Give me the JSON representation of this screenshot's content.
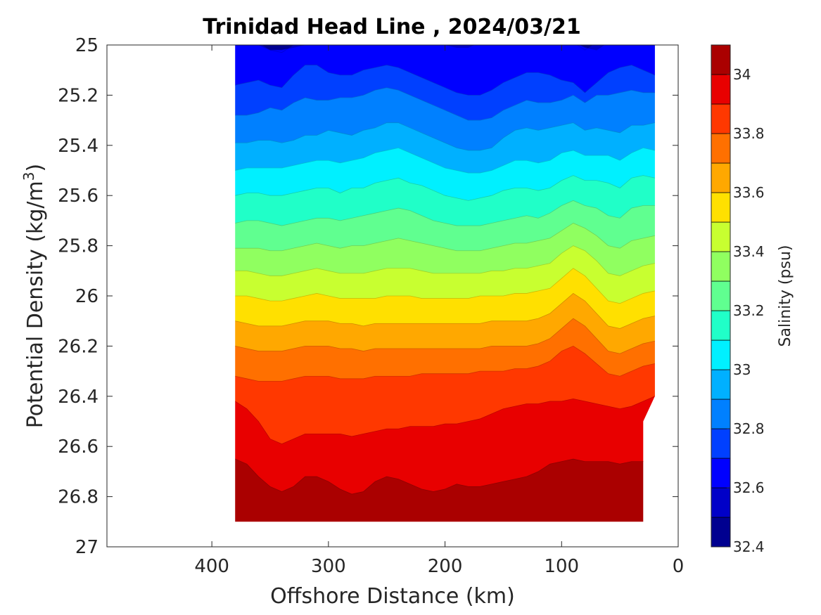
{
  "chart_data": {
    "type": "contour",
    "title": "Trinidad Head Line , 2024/03/21",
    "xlabel": "Offshore Distance (km)",
    "ylabel": "Potential Density (kg/m",
    "ylabel_superscript": "3",
    "ylabel_suffix": ")",
    "x_reversed": true,
    "y_reversed": true,
    "xlim": [
      0,
      490
    ],
    "ylim": [
      25,
      27
    ],
    "x_ticks": [
      400,
      300,
      200,
      100,
      0
    ],
    "x_tick_labels": [
      "400",
      "300",
      "200",
      "100",
      "0"
    ],
    "y_ticks": [
      25,
      25.2,
      25.4,
      25.6,
      25.8,
      26,
      26.2,
      26.4,
      26.6,
      26.8,
      27
    ],
    "y_tick_labels": [
      "25",
      "25.2",
      "25.4",
      "25.6",
      "25.8",
      "26",
      "26.2",
      "26.4",
      "26.6",
      "26.8",
      "27"
    ],
    "data_extent": {
      "x_min_km": 20,
      "x_max_km": 380,
      "sigma_max_by_x": [
        {
          "x": 380,
          "sigma": 26.9
        },
        {
          "x": 30,
          "sigma": 26.9
        },
        {
          "x": 30,
          "sigma": 26.5
        },
        {
          "x": 20,
          "sigma": 26.4
        },
        {
          "x": 20,
          "sigma": 25.0
        }
      ]
    },
    "colorbar": {
      "label": "Salinity (psu)",
      "range": [
        32.4,
        34.1
      ],
      "levels": [
        32.4,
        32.5,
        32.6,
        32.7,
        32.8,
        32.9,
        33.0,
        33.1,
        33.2,
        33.3,
        33.4,
        33.5,
        33.6,
        33.7,
        33.8,
        33.9,
        34.0,
        34.1
      ],
      "ticks": [
        32.4,
        32.6,
        32.8,
        33,
        33.2,
        33.4,
        33.6,
        33.8,
        34
      ],
      "tick_labels": [
        "32.4",
        "32.6",
        "32.8",
        "33",
        "33.2",
        "33.4",
        "33.6",
        "33.8",
        "34"
      ],
      "colors": [
        "#000090",
        "#0000c8",
        "#0000ff",
        "#0040ff",
        "#0080ff",
        "#00b0ff",
        "#00f0ff",
        "#20ffc8",
        "#60ff90",
        "#90ff60",
        "#c8ff30",
        "#ffe000",
        "#ffa800",
        "#ff7000",
        "#ff3800",
        "#e80000",
        "#aa0000"
      ]
    },
    "isolines_x": [
      20,
      30,
      40,
      50,
      60,
      70,
      80,
      90,
      100,
      110,
      120,
      130,
      140,
      150,
      160,
      170,
      180,
      190,
      200,
      210,
      220,
      230,
      240,
      250,
      260,
      270,
      280,
      290,
      300,
      310,
      320,
      330,
      340,
      350,
      360,
      370,
      380
    ],
    "isolines": [
      {
        "value": 32.5,
        "sigma": [
          24.99,
          24.99,
          24.99,
          24.99,
          24.99,
          24.99,
          25.02,
          24.99,
          24.99,
          24.99,
          24.99,
          24.99,
          24.99,
          24.99,
          24.99,
          24.99,
          24.99,
          24.99,
          24.99,
          24.99,
          24.99,
          24.99,
          24.99,
          24.99,
          24.99,
          24.99,
          24.99,
          24.99,
          24.99,
          24.99,
          24.99,
          25.0,
          25.03,
          25.02,
          24.99,
          24.99,
          24.99
        ]
      },
      {
        "value": 32.6,
        "sigma": [
          24.99,
          24.99,
          24.99,
          24.99,
          24.99,
          25.02,
          25.01,
          24.99,
          24.99,
          24.99,
          24.99,
          24.99,
          24.99,
          24.99,
          24.99,
          24.99,
          25.01,
          25.01,
          25.0,
          24.99,
          24.99,
          24.99,
          24.99,
          24.99,
          24.99,
          24.99,
          24.99,
          24.99,
          24.99,
          24.99,
          25.0,
          25.01,
          25.02,
          25.02,
          25.0,
          24.99,
          24.99
        ]
      },
      {
        "value": 32.7,
        "sigma": [
          25.12,
          25.1,
          25.08,
          25.09,
          25.11,
          25.15,
          25.19,
          25.15,
          25.14,
          25.12,
          25.11,
          25.11,
          25.13,
          25.15,
          25.18,
          25.2,
          25.2,
          25.19,
          25.17,
          25.15,
          25.13,
          25.11,
          25.09,
          25.08,
          25.09,
          25.1,
          25.12,
          25.12,
          25.11,
          25.08,
          25.08,
          25.12,
          25.17,
          25.16,
          25.14,
          25.15,
          25.16
        ]
      },
      {
        "value": 32.8,
        "sigma": [
          25.19,
          25.19,
          25.18,
          25.19,
          25.2,
          25.2,
          25.23,
          25.2,
          25.22,
          25.23,
          25.23,
          25.22,
          25.24,
          25.26,
          25.29,
          25.3,
          25.3,
          25.28,
          25.26,
          25.24,
          25.22,
          25.2,
          25.18,
          25.17,
          25.18,
          25.2,
          25.21,
          25.21,
          25.22,
          25.22,
          25.21,
          25.23,
          25.26,
          25.25,
          25.27,
          25.28,
          25.28
        ]
      },
      {
        "value": 32.9,
        "sigma": [
          25.31,
          25.32,
          25.32,
          25.35,
          25.34,
          25.33,
          25.34,
          25.31,
          25.32,
          25.33,
          25.34,
          25.33,
          25.34,
          25.37,
          25.41,
          25.42,
          25.42,
          25.41,
          25.39,
          25.37,
          25.35,
          25.33,
          25.31,
          25.31,
          25.33,
          25.34,
          25.36,
          25.35,
          25.34,
          25.36,
          25.36,
          25.38,
          25.39,
          25.38,
          25.38,
          25.39,
          25.39
        ]
      },
      {
        "value": 33.0,
        "sigma": [
          25.42,
          25.41,
          25.43,
          25.46,
          25.44,
          25.44,
          25.44,
          25.42,
          25.43,
          25.46,
          25.47,
          25.46,
          25.46,
          25.48,
          25.5,
          25.51,
          25.51,
          25.5,
          25.49,
          25.47,
          25.45,
          25.43,
          25.41,
          25.42,
          25.43,
          25.45,
          25.46,
          25.47,
          25.46,
          25.46,
          25.47,
          25.48,
          25.49,
          25.49,
          25.49,
          25.49,
          25.5
        ]
      },
      {
        "value": 33.1,
        "sigma": [
          25.53,
          25.52,
          25.53,
          25.57,
          25.55,
          25.54,
          25.54,
          25.52,
          25.54,
          25.57,
          25.58,
          25.57,
          25.57,
          25.58,
          25.6,
          25.61,
          25.62,
          25.61,
          25.6,
          25.58,
          25.56,
          25.55,
          25.53,
          25.54,
          25.55,
          25.57,
          25.57,
          25.59,
          25.57,
          25.57,
          25.58,
          25.59,
          25.6,
          25.6,
          25.59,
          25.59,
          25.6
        ]
      },
      {
        "value": 33.2,
        "sigma": [
          25.64,
          25.64,
          25.65,
          25.69,
          25.68,
          25.65,
          25.64,
          25.62,
          25.64,
          25.67,
          25.69,
          25.68,
          25.69,
          25.7,
          25.71,
          25.72,
          25.72,
          25.72,
          25.71,
          25.7,
          25.68,
          25.66,
          25.65,
          25.66,
          25.67,
          25.68,
          25.69,
          25.7,
          25.69,
          25.69,
          25.7,
          25.71,
          25.72,
          25.71,
          25.7,
          25.7,
          25.71
        ]
      },
      {
        "value": 33.3,
        "sigma": [
          25.76,
          25.77,
          25.78,
          25.81,
          25.8,
          25.76,
          25.73,
          25.71,
          25.74,
          25.77,
          25.78,
          25.79,
          25.79,
          25.8,
          25.81,
          25.82,
          25.82,
          25.82,
          25.81,
          25.8,
          25.79,
          25.78,
          25.77,
          25.78,
          25.79,
          25.8,
          25.8,
          25.81,
          25.8,
          25.79,
          25.8,
          25.81,
          25.82,
          25.82,
          25.81,
          25.81,
          25.81
        ]
      },
      {
        "value": 33.4,
        "sigma": [
          25.87,
          25.88,
          25.9,
          25.92,
          25.91,
          25.86,
          25.82,
          25.8,
          25.83,
          25.87,
          25.88,
          25.89,
          25.89,
          25.9,
          25.9,
          25.91,
          25.91,
          25.91,
          25.91,
          25.91,
          25.9,
          25.89,
          25.89,
          25.89,
          25.9,
          25.91,
          25.91,
          25.91,
          25.9,
          25.89,
          25.9,
          25.91,
          25.92,
          25.92,
          25.91,
          25.9,
          25.9
        ]
      },
      {
        "value": 33.5,
        "sigma": [
          25.98,
          25.99,
          26.01,
          26.03,
          26.02,
          25.97,
          25.92,
          25.89,
          25.93,
          25.97,
          25.98,
          25.99,
          25.99,
          26.0,
          26.0,
          26.0,
          26.01,
          26.01,
          26.01,
          26.01,
          26.01,
          26.0,
          26.0,
          26.0,
          26.01,
          26.01,
          26.01,
          26.01,
          26.0,
          25.99,
          26.0,
          26.01,
          26.02,
          26.02,
          26.01,
          26.0,
          26.0
        ]
      },
      {
        "value": 33.6,
        "sigma": [
          26.08,
          26.09,
          26.11,
          26.13,
          26.12,
          26.07,
          26.02,
          25.99,
          26.03,
          26.07,
          26.09,
          26.1,
          26.1,
          26.1,
          26.1,
          26.11,
          26.11,
          26.11,
          26.11,
          26.11,
          26.11,
          26.11,
          26.11,
          26.11,
          26.11,
          26.12,
          26.11,
          26.11,
          26.1,
          26.1,
          26.1,
          26.11,
          26.12,
          26.12,
          26.12,
          26.11,
          26.1
        ]
      },
      {
        "value": 33.7,
        "sigma": [
          26.18,
          26.19,
          26.21,
          26.23,
          26.22,
          26.17,
          26.12,
          26.09,
          26.13,
          26.17,
          26.19,
          26.2,
          26.2,
          26.2,
          26.2,
          26.21,
          26.21,
          26.21,
          26.21,
          26.21,
          26.21,
          26.21,
          26.21,
          26.21,
          26.21,
          26.22,
          26.21,
          26.21,
          26.2,
          26.2,
          26.2,
          26.21,
          26.22,
          26.22,
          26.22,
          26.21,
          26.2
        ]
      },
      {
        "value": 33.8,
        "sigma": [
          26.27,
          26.28,
          26.3,
          26.32,
          26.31,
          26.27,
          26.23,
          26.2,
          26.22,
          26.26,
          26.28,
          26.29,
          26.29,
          26.3,
          26.3,
          26.3,
          26.31,
          26.31,
          26.31,
          26.31,
          26.31,
          26.32,
          26.32,
          26.32,
          26.32,
          26.33,
          26.33,
          26.33,
          26.32,
          26.32,
          26.32,
          26.33,
          26.34,
          26.34,
          26.34,
          26.33,
          26.32
        ]
      },
      {
        "value": 33.9,
        "sigma": [
          26.4,
          26.42,
          26.44,
          26.45,
          26.44,
          26.43,
          26.42,
          26.41,
          26.42,
          26.42,
          26.43,
          26.43,
          26.44,
          26.45,
          26.47,
          26.49,
          26.5,
          26.51,
          26.51,
          26.52,
          26.52,
          26.52,
          26.53,
          26.53,
          26.54,
          26.55,
          26.56,
          26.55,
          26.55,
          26.55,
          26.55,
          26.57,
          26.59,
          26.57,
          26.5,
          26.45,
          26.42
        ]
      },
      {
        "value": 34.0,
        "sigma": [
          26.66,
          26.66,
          26.66,
          26.67,
          26.66,
          26.66,
          26.66,
          26.65,
          26.66,
          26.67,
          26.7,
          26.72,
          26.73,
          26.74,
          26.75,
          26.76,
          26.76,
          26.75,
          26.77,
          26.78,
          26.77,
          26.75,
          26.73,
          26.72,
          26.74,
          26.78,
          26.79,
          26.77,
          26.74,
          26.72,
          26.72,
          26.76,
          26.78,
          26.76,
          26.72,
          26.67,
          26.65
        ]
      }
    ]
  }
}
